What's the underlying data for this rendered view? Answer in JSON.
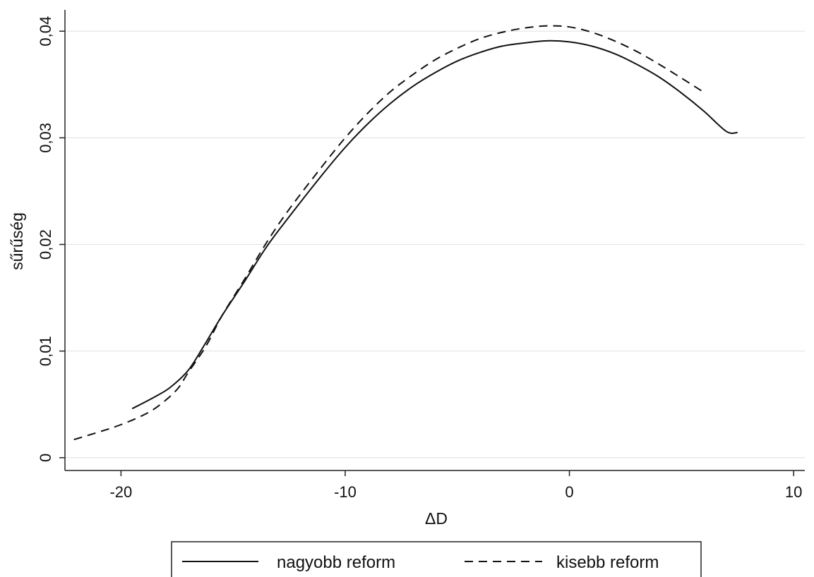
{
  "chart_data": {
    "type": "line",
    "title": "",
    "xlabel": "ΔD",
    "ylabel": "sűrűség",
    "xlim": [
      -22.5,
      10.5
    ],
    "ylim": [
      -0.0012,
      0.042
    ],
    "x_ticks": [
      -20,
      -10,
      0,
      10
    ],
    "x_tick_labels": [
      "-20",
      "-10",
      "0",
      "10"
    ],
    "y_ticks": [
      0,
      0.01,
      0.02,
      0.03,
      0.04
    ],
    "y_tick_labels": [
      "0",
      "0,01",
      "0,02",
      "0,03",
      "0,04"
    ],
    "grid": "horizontal",
    "legend_position": "bottom",
    "series": [
      {
        "name": "nagyobb reform",
        "style": "solid",
        "color": "#111111",
        "x": [
          -19.5,
          -18.5,
          -17.8,
          -17,
          -16.3,
          -15.5,
          -14.5,
          -13.5,
          -12.5,
          -11,
          -10,
          -9,
          -8,
          -7,
          -6,
          -5,
          -4,
          -3,
          -2,
          -1,
          0,
          1,
          2,
          3,
          4,
          5,
          6,
          7,
          7.5
        ],
        "y": [
          0.0046,
          0.0057,
          0.0066,
          0.0082,
          0.0105,
          0.0133,
          0.0165,
          0.0198,
          0.0226,
          0.0266,
          0.0291,
          0.0313,
          0.0332,
          0.0348,
          0.0361,
          0.0372,
          0.038,
          0.0386,
          0.0389,
          0.0391,
          0.039,
          0.0386,
          0.0379,
          0.0369,
          0.0357,
          0.0342,
          0.0325,
          0.0306,
          0.0305
        ]
      },
      {
        "name": "kisebb reform",
        "style": "dashed",
        "color": "#111111",
        "x": [
          -22.1,
          -21,
          -20,
          -19,
          -18.3,
          -17.5,
          -17,
          -16.2,
          -15.5,
          -14.5,
          -13.5,
          -12.5,
          -11,
          -10,
          -9,
          -8,
          -7,
          -6,
          -5,
          -4,
          -3,
          -2,
          -1,
          0,
          1,
          2,
          3,
          4,
          5,
          5.9
        ],
        "y": [
          0.0017,
          0.0024,
          0.0031,
          0.004,
          0.0049,
          0.0064,
          0.008,
          0.0105,
          0.0133,
          0.0167,
          0.0202,
          0.0233,
          0.0274,
          0.03,
          0.0323,
          0.0343,
          0.0359,
          0.0373,
          0.0384,
          0.0393,
          0.0399,
          0.0403,
          0.0405,
          0.0404,
          0.0399,
          0.0391,
          0.0381,
          0.0369,
          0.0356,
          0.0344
        ]
      }
    ]
  }
}
